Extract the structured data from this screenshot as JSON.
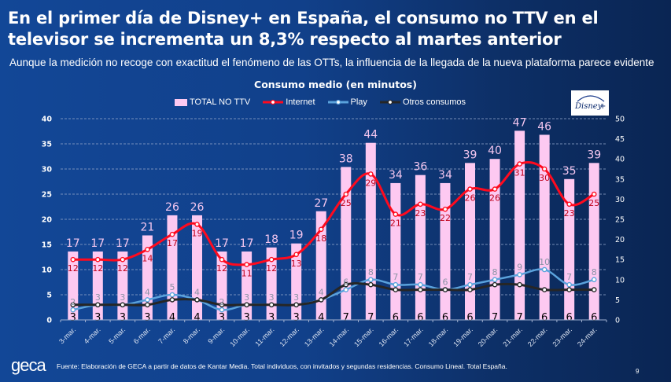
{
  "header": {
    "title": "En el primer día de Disney+ en España, el consumo no TTV en el televisor se incrementa un 8,3% respecto al martes anterior",
    "subtitle": "Aunque la medición no recoge con exactitud el fenómeno de las OTTs, la influencia de la llegada de la nueva plataforma parece evidente"
  },
  "logos": {
    "disney": "Disney+",
    "geca": "geca"
  },
  "footer": {
    "source": "Fuente: Elaboración de GECA a partir de datos de Kantar Media. Total individuos, con invitados y segundas residencias. Consumo Lineal. Total España.",
    "page_number": "9"
  },
  "colors": {
    "bar": "#fdc9f1",
    "bar_label": "#f3c6ef",
    "internet": "#ff0a1e",
    "internet_label": "#c0001a",
    "play": "#5aa2dc",
    "play_label": "#8a93a6",
    "otros": "#262626",
    "otros_label": "#000000"
  },
  "chart_data": {
    "type": "bar+line",
    "title": "Consumo medio (en minutos)",
    "categories": [
      "3-mar.",
      "4-mar.",
      "5-mar.",
      "6-mar.",
      "7-mar.",
      "8-mar.",
      "9-mar.",
      "10-mar.",
      "11-mar.",
      "12-mar.",
      "13-mar.",
      "14-mar.",
      "15-mar.",
      "16-mar.",
      "17-mar.",
      "18-mar.",
      "19-mar.",
      "20-mar.",
      "21-mar.",
      "22-mar.",
      "23-mar.",
      "24-mar."
    ],
    "series": [
      {
        "name": "TOTAL NO TTV",
        "kind": "bar",
        "axis": "right",
        "values": [
          17,
          17,
          17,
          21,
          26,
          26,
          17,
          17,
          18,
          19,
          27,
          38,
          44,
          34,
          36,
          34,
          39,
          40,
          47,
          46,
          35,
          39
        ]
      },
      {
        "name": "Internet",
        "kind": "line",
        "axis": "left",
        "values": [
          12,
          12,
          12,
          14,
          17,
          19,
          12,
          11,
          12,
          13,
          18,
          25,
          29,
          21,
          23,
          22,
          26,
          26,
          31,
          30,
          23,
          25
        ]
      },
      {
        "name": "Play",
        "kind": "line",
        "axis": "left",
        "values": [
          2,
          3,
          3,
          4,
          5,
          4,
          2,
          3,
          3,
          3,
          4,
          6,
          8,
          7,
          7,
          6,
          7,
          8,
          9,
          10,
          7,
          8
        ]
      },
      {
        "name": "Otros consumos",
        "kind": "line",
        "axis": "left",
        "values": [
          3,
          3,
          3,
          3,
          4,
          4,
          3,
          3,
          3,
          3,
          4,
          7,
          7,
          6,
          6,
          6,
          6,
          7,
          7,
          6,
          6,
          6
        ]
      }
    ],
    "y_left": {
      "min": 0,
      "max": 40,
      "ticks": [
        0,
        5,
        10,
        15,
        20,
        25,
        30,
        35,
        40
      ]
    },
    "y_right": {
      "min": 0,
      "max": 50,
      "ticks": [
        0,
        5,
        10,
        15,
        20,
        25,
        30,
        35,
        40,
        45,
        50
      ]
    },
    "grid": true,
    "legend_position": "top-center"
  }
}
